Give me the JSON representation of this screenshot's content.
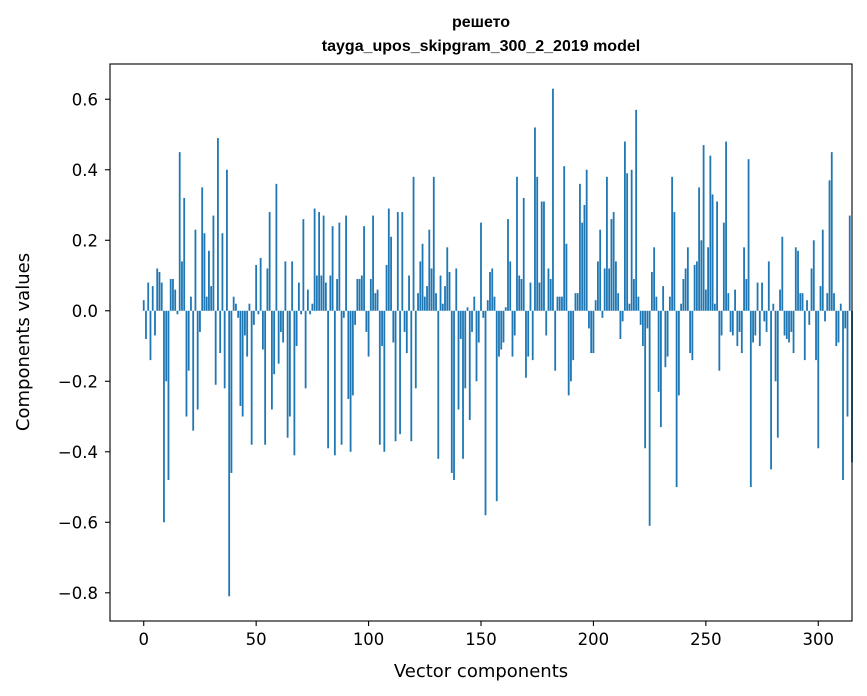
{
  "chart_data": {
    "type": "bar",
    "title": "решето",
    "subtitle": "tayga_upos_skipgram_300_2_2019 model",
    "xlabel": "Vector components",
    "ylabel": "Components values",
    "xlim": [
      -15,
      315
    ],
    "ylim": [
      -0.88,
      0.7
    ],
    "xticks": [
      0,
      50,
      100,
      150,
      200,
      250,
      300
    ],
    "xtick_labels": [
      "0",
      "50",
      "100",
      "150",
      "200",
      "250",
      "300"
    ],
    "yticks": [
      -0.8,
      -0.6,
      -0.4,
      -0.2,
      0.0,
      0.2,
      0.4,
      0.6
    ],
    "ytick_labels": [
      "−0.8",
      "−0.6",
      "−0.4",
      "−0.2",
      "0.0",
      "0.2",
      "0.4",
      "0.6"
    ],
    "bar_color": "#1f77b4",
    "grid": false,
    "values": [
      0.03,
      -0.08,
      0.08,
      -0.14,
      0.07,
      -0.07,
      0.12,
      0.11,
      0.08,
      -0.6,
      -0.2,
      -0.48,
      0.09,
      0.09,
      0.06,
      -0.01,
      0.45,
      0.14,
      0.32,
      -0.3,
      -0.17,
      0.04,
      -0.34,
      0.23,
      -0.28,
      -0.06,
      0.35,
      0.22,
      0.04,
      0.17,
      0.07,
      0.27,
      -0.21,
      0.49,
      -0.12,
      0.22,
      -0.22,
      0.4,
      -0.81,
      -0.46,
      0.04,
      0.02,
      -0.02,
      -0.27,
      -0.3,
      -0.07,
      -0.13,
      0.02,
      -0.38,
      -0.04,
      0.13,
      -0.01,
      0.15,
      -0.11,
      -0.38,
      0.12,
      0.28,
      -0.28,
      -0.18,
      0.36,
      -0.15,
      -0.06,
      -0.09,
      0.14,
      -0.36,
      -0.3,
      0.14,
      -0.41,
      -0.1,
      0.08,
      -0.01,
      0.26,
      -0.22,
      0.06,
      -0.01,
      0.02,
      0.29,
      0.1,
      0.28,
      0.1,
      0.27,
      0.08,
      -0.39,
      0.1,
      0.24,
      -0.41,
      0.09,
      0.25,
      -0.38,
      -0.02,
      0.27,
      -0.25,
      -0.4,
      -0.24,
      -0.04,
      0.09,
      0.09,
      0.1,
      0.24,
      -0.06,
      -0.13,
      0.09,
      0.27,
      0.05,
      0.06,
      -0.38,
      -0.1,
      -0.4,
      0.13,
      0.29,
      0.21,
      -0.09,
      -0.37,
      0.28,
      -0.35,
      0.28,
      -0.06,
      -0.12,
      0.1,
      -0.37,
      0.38,
      -0.22,
      0.05,
      0.14,
      0.19,
      0.04,
      0.07,
      0.23,
      0.12,
      0.38,
      0.05,
      -0.42,
      0.1,
      0.02,
      0.07,
      0.18,
      0.11,
      -0.46,
      -0.48,
      0.12,
      -0.28,
      -0.08,
      -0.42,
      -0.22,
      0.01,
      -0.31,
      -0.06,
      0.04,
      -0.2,
      -0.09,
      0.25,
      -0.02,
      -0.58,
      0.03,
      0.11,
      0.12,
      0.04,
      -0.54,
      -0.13,
      -0.11,
      -0.09,
      0.01,
      0.26,
      0.14,
      -0.13,
      -0.07,
      0.38,
      0.1,
      0.09,
      0.32,
      -0.19,
      -0.13,
      0.08,
      -0.14,
      0.52,
      0.38,
      0.08,
      0.31,
      0.31,
      -0.07,
      0.12,
      0.09,
      0.63,
      -0.17,
      0.04,
      0.04,
      0.04,
      0.41,
      0.19,
      -0.24,
      -0.2,
      -0.14,
      0.05,
      0.05,
      0.36,
      0.25,
      0.3,
      0.4,
      -0.05,
      -0.12,
      -0.12,
      0.03,
      0.14,
      0.23,
      -0.02,
      0.12,
      0.38,
      0.12,
      0.26,
      0.28,
      0.14,
      0.05,
      -0.08,
      -0.03,
      0.48,
      0.39,
      0.02,
      0.4,
      0.09,
      0.57,
      0.04,
      -0.04,
      -0.1,
      -0.39,
      -0.05,
      -0.61,
      0.11,
      0.18,
      0.04,
      -0.23,
      -0.33,
      0.07,
      -0.16,
      -0.13,
      0.04,
      0.38,
      0.28,
      -0.5,
      -0.24,
      0.02,
      0.09,
      0.12,
      0.18,
      -0.12,
      -0.14,
      0.13,
      0.14,
      0.35,
      0.2,
      0.47,
      0.06,
      0.18,
      0.44,
      0.33,
      0.02,
      0.31,
      -0.17,
      -0.07,
      0.25,
      0.48,
      0.05,
      -0.06,
      -0.07,
      0.06,
      -0.1,
      -0.06,
      -0.12,
      0.18,
      0.09,
      0.43,
      -0.5,
      -0.09,
      -0.07,
      0.08,
      -0.1,
      0.08,
      -0.03,
      -0.06,
      0.14,
      -0.45,
      0.02,
      -0.2,
      -0.36,
      0.06,
      0.21,
      -0.07,
      -0.08,
      -0.09,
      -0.06,
      -0.12,
      0.18,
      0.17,
      0.05,
      0.05,
      -0.14,
      0.03,
      -0.04,
      0.12,
      0.2,
      -0.14,
      -0.39,
      0.07,
      0.23,
      -0.03,
      0.05,
      0.37,
      0.45,
      0.05,
      -0.1,
      -0.09,
      0.02,
      -0.48,
      -0.05,
      -0.3,
      0.27,
      -0.43
    ]
  }
}
